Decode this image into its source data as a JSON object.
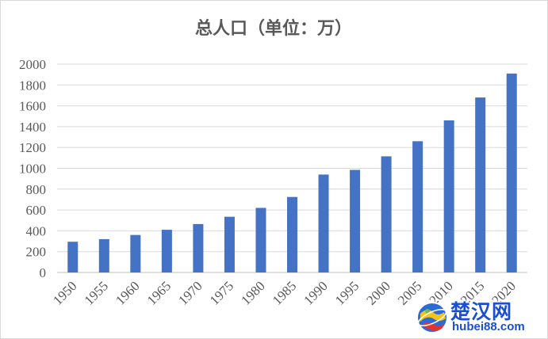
{
  "chart_data": {
    "type": "bar",
    "title": "总人口（单位：万）",
    "categories": [
      "1950",
      "1955",
      "1960",
      "1965",
      "1970",
      "1975",
      "1980",
      "1985",
      "1990",
      "1995",
      "2000",
      "2005",
      "2010",
      "2015",
      "2020"
    ],
    "series": [
      {
        "values": [
          295,
          320,
          360,
          410,
          465,
          535,
          620,
          725,
          940,
          985,
          1115,
          1260,
          1460,
          1680,
          1910
        ]
      }
    ],
    "y_ticks": [
      "0",
      "200",
      "400",
      "600",
      "800",
      "1000",
      "1200",
      "1400",
      "1600",
      "1800",
      "2000"
    ],
    "ylim": [
      0,
      2000
    ],
    "xlabel": "",
    "ylabel": "",
    "grid": true,
    "legend": "none",
    "bar_color": "#4472c4",
    "text_color": "#595959",
    "grid_color": "#d9d9d9"
  },
  "watermark": {
    "title": "楚汉网",
    "url": "hubei88.com",
    "color": "#1a4fd1",
    "icon": "globe-logo-icon"
  }
}
